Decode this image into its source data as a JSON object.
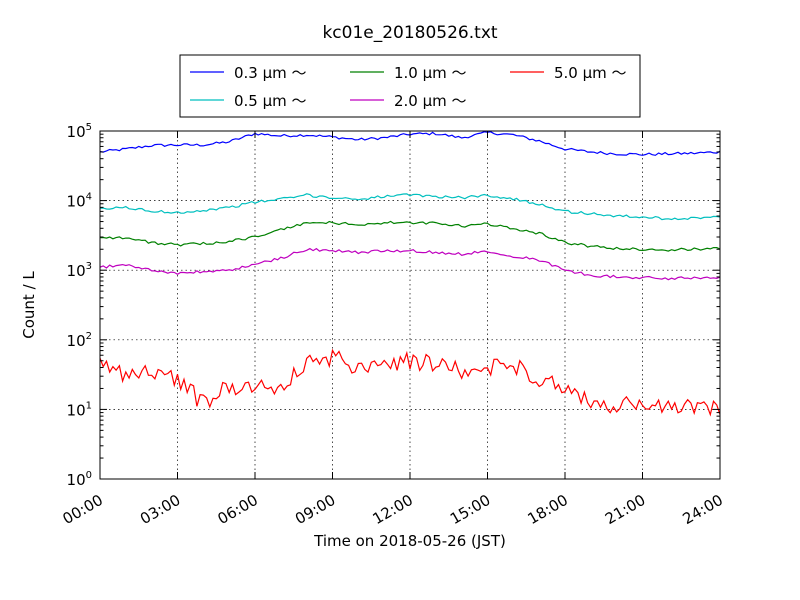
{
  "chart_data": {
    "type": "line",
    "title": "kc01e_20180526.txt",
    "xlabel": "Time on 2018-05-26 (JST)",
    "ylabel": "Count / L",
    "y_scale": "log",
    "ylim": [
      1,
      100000
    ],
    "xlim": [
      "00:00",
      "24:00"
    ],
    "grid": true,
    "legend_position": "top-center",
    "x_ticks": [
      "00:00",
      "03:00",
      "06:00",
      "09:00",
      "12:00",
      "15:00",
      "18:00",
      "21:00",
      "24:00"
    ],
    "y_ticks": [
      {
        "base": "10",
        "exp": "0"
      },
      {
        "base": "10",
        "exp": "1"
      },
      {
        "base": "10",
        "exp": "2"
      },
      {
        "base": "10",
        "exp": "3"
      },
      {
        "base": "10",
        "exp": "4"
      },
      {
        "base": "10",
        "exp": "5"
      }
    ],
    "x_hours": [
      0,
      1,
      2,
      3,
      4,
      5,
      6,
      7,
      8,
      9,
      10,
      11,
      12,
      13,
      14,
      15,
      16,
      17,
      18,
      19,
      20,
      21,
      22,
      23,
      24
    ],
    "series": [
      {
        "name": "0.3 µm ～",
        "color": "#0000ff",
        "values": [
          50000,
          55000,
          62000,
          63000,
          63000,
          70000,
          92000,
          85000,
          88000,
          82000,
          75000,
          80000,
          90000,
          92000,
          80000,
          95000,
          88000,
          72000,
          55000,
          50000,
          47000,
          46000,
          47000,
          48000,
          50000
        ]
      },
      {
        "name": "0.5 µm ～",
        "color": "#00bfbf",
        "values": [
          7500,
          8000,
          7000,
          6800,
          7200,
          8000,
          9500,
          10500,
          12000,
          11000,
          10500,
          11500,
          12000,
          11500,
          11000,
          12000,
          10500,
          9000,
          7000,
          6500,
          6000,
          5800,
          5500,
          5600,
          5800
        ]
      },
      {
        "name": "1.0 µm ～",
        "color": "#008000",
        "values": [
          3000,
          2900,
          2500,
          2300,
          2400,
          2600,
          3000,
          3800,
          4800,
          4800,
          4500,
          4800,
          4800,
          4700,
          4300,
          4600,
          4000,
          3400,
          2500,
          2200,
          2050,
          2000,
          1950,
          2000,
          2100
        ]
      },
      {
        "name": "2.0 µm ～",
        "color": "#bf00bf",
        "values": [
          1100,
          1200,
          1000,
          900,
          950,
          1000,
          1200,
          1500,
          2000,
          1900,
          1800,
          1900,
          1900,
          1800,
          1700,
          1900,
          1600,
          1400,
          1000,
          850,
          800,
          780,
          760,
          780,
          800
        ]
      },
      {
        "name": "5.0 µm ～",
        "color": "#ff0000",
        "values": [
          45,
          32,
          35,
          28,
          12,
          22,
          22,
          20,
          45,
          55,
          42,
          50,
          48,
          45,
          35,
          40,
          45,
          28,
          18,
          13,
          11,
          12,
          10,
          11,
          10
        ]
      }
    ]
  }
}
